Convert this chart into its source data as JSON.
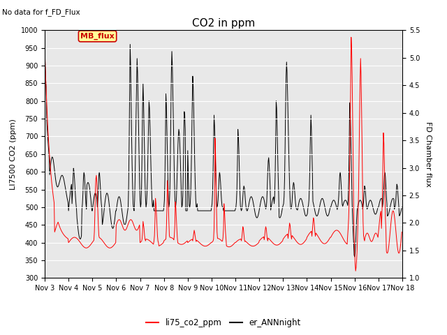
{
  "title": "CO2 in ppm",
  "ylabel_left": "LI7500 CO2 (ppm)",
  "ylabel_right": "FD Chamber flux",
  "text_no_data": "No data for f_FD_Flux",
  "legend_label_mb": "MB_flux",
  "legend_label_red": "li75_co2_ppm",
  "legend_label_black": "er_ANNnight",
  "ylim_left": [
    300,
    1000
  ],
  "ylim_right": [
    1.0,
    5.5
  ],
  "yticks_left": [
    300,
    350,
    400,
    450,
    500,
    550,
    600,
    650,
    700,
    750,
    800,
    850,
    900,
    950,
    1000
  ],
  "yticks_right": [
    1.0,
    1.5,
    2.0,
    2.5,
    3.0,
    3.5,
    4.0,
    4.5,
    5.0,
    5.5
  ],
  "bg_color": "#e8e8e8",
  "fig_bg": "#ffffff",
  "red_color": "#ff0000",
  "black_color": "#000000",
  "title_fontsize": 11,
  "axis_fontsize": 8,
  "tick_fontsize": 7
}
